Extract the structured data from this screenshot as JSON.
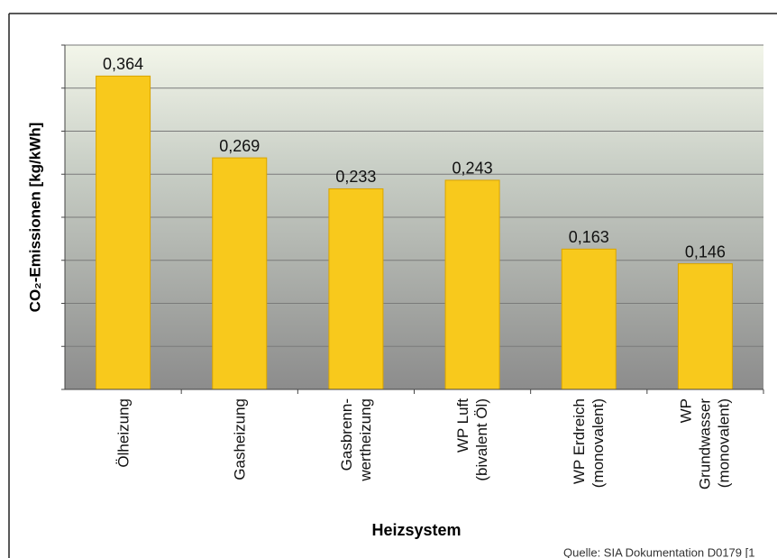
{
  "chart_data": {
    "type": "bar",
    "y_label": "CO₂-Emissionen [kg/kWh]",
    "x_label": "Heizsystem",
    "source": "Quelle: SIA Dokumentation D0179 [1",
    "categories": [
      "Ölheizung",
      "Gasheizung",
      "Gasbrenn-\nwertheizung",
      "WP Luft\n(bivalent Öl)",
      "WP Erdreich\n(monovalent)",
      "WP\nGrundwasser\n(monovalent)"
    ],
    "values": [
      0.364,
      0.269,
      0.233,
      0.243,
      0.163,
      0.146
    ],
    "value_labels": [
      "0,364",
      "0,269",
      "0,233",
      "0,243",
      "0,163",
      "0,146"
    ],
    "color": "#f8c91c",
    "ylim": [
      0,
      0.4
    ],
    "yticks": [
      0,
      0.05,
      0.1,
      0.15,
      0.2,
      0.25,
      0.3,
      0.35,
      0.4
    ],
    "grid": true
  }
}
